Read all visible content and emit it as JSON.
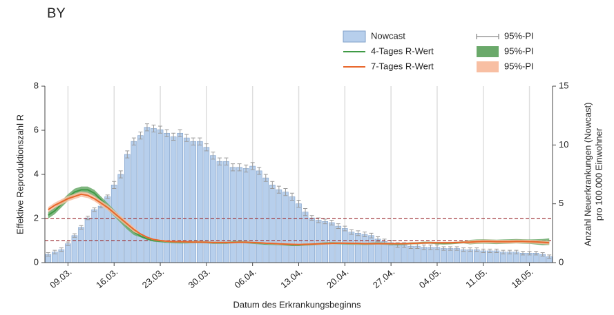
{
  "chart_data": {
    "type": "bar-line",
    "title": "BY",
    "x_label": "Datum des Erkrankungsbeginns",
    "y_label": "Effektive Reproduktionszahl R",
    "y2_label": [
      "Anzahl Neuerkrankungen (Nowcast)",
      "pro 100.000 Einwohner"
    ],
    "categories": [
      null,
      null,
      null,
      "09.03.",
      null,
      null,
      null,
      null,
      null,
      null,
      "16.03.",
      null,
      null,
      null,
      null,
      null,
      null,
      "23.03.",
      null,
      null,
      null,
      null,
      null,
      null,
      "30.03.",
      null,
      null,
      null,
      null,
      null,
      null,
      "06.04.",
      null,
      null,
      null,
      null,
      null,
      null,
      "13.04.",
      null,
      null,
      null,
      null,
      null,
      null,
      "20.04.",
      null,
      null,
      null,
      null,
      null,
      null,
      "27.04.",
      null,
      null,
      null,
      null,
      null,
      null,
      "04.05.",
      null,
      null,
      null,
      null,
      null,
      null,
      "11.05.",
      null,
      null,
      null,
      null,
      null,
      null,
      "18.05.",
      null,
      null,
      null
    ],
    "ylim": [
      0,
      8
    ],
    "yticks": [
      0,
      2,
      4,
      6,
      8
    ],
    "y2lim": [
      0,
      15
    ],
    "y2ticks": [
      0,
      5,
      10,
      15
    ],
    "reference_lines": [
      1,
      2
    ],
    "reference_color": "#a0383c",
    "grid": true,
    "series": [
      {
        "name": "Nowcast",
        "type": "bar",
        "axis": "y2",
        "color": "#b7cfec",
        "edge_color": "#7f9fc8",
        "interval_name": "95%-PI",
        "interval_color": "#9a9a9a",
        "values": [
          0.7,
          0.9,
          1.1,
          1.6,
          2.3,
          3.0,
          3.8,
          4.5,
          4.8,
          5.6,
          6.6,
          7.5,
          9.2,
          10.3,
          10.8,
          11.5,
          11.4,
          11.3,
          11.0,
          10.7,
          11.0,
          10.6,
          10.3,
          10.3,
          9.8,
          9.1,
          8.6,
          8.6,
          8.1,
          8.1,
          8.0,
          8.2,
          7.8,
          7.2,
          6.6,
          6.2,
          6.0,
          5.6,
          5.0,
          4.3,
          3.8,
          3.6,
          3.5,
          3.4,
          3.1,
          2.9,
          2.6,
          2.5,
          2.4,
          2.3,
          2.0,
          1.8,
          1.7,
          1.5,
          1.5,
          1.4,
          1.4,
          1.3,
          1.3,
          1.3,
          1.2,
          1.2,
          1.2,
          1.1,
          1.1,
          1.1,
          1.0,
          1.0,
          1.0,
          0.9,
          0.9,
          0.9,
          0.8,
          0.8,
          0.8,
          0.7,
          0.5
        ],
        "errors": [
          0.15,
          0.15,
          0.15,
          0.15,
          0.15,
          0.15,
          0.15,
          0.15,
          0.15,
          0.15,
          0.3,
          0.3,
          0.3,
          0.3,
          0.3,
          0.3,
          0.3,
          0.3,
          0.3,
          0.3,
          0.3,
          0.3,
          0.3,
          0.3,
          0.3,
          0.3,
          0.3,
          0.3,
          0.3,
          0.3,
          0.3,
          0.3,
          0.3,
          0.3,
          0.3,
          0.3,
          0.3,
          0.3,
          0.3,
          0.3,
          0.2,
          0.2,
          0.2,
          0.2,
          0.2,
          0.2,
          0.2,
          0.2,
          0.2,
          0.2,
          0.2,
          0.2,
          0.2,
          0.2,
          0.2,
          0.2,
          0.2,
          0.2,
          0.2,
          0.2,
          0.15,
          0.15,
          0.15,
          0.15,
          0.15,
          0.15,
          0.15,
          0.15,
          0.15,
          0.15,
          0.15,
          0.15,
          0.15,
          0.15,
          0.15,
          0.15,
          0.15
        ]
      },
      {
        "name": "4-Tages R-Wert",
        "type": "line",
        "color": "#3f9a45",
        "interval_name": "95%-PI",
        "interval_color": "#6aa96a",
        "values": [
          2.15,
          2.35,
          2.65,
          2.95,
          3.2,
          3.3,
          3.3,
          3.15,
          2.85,
          2.55,
          2.25,
          1.95,
          1.65,
          1.4,
          1.2,
          1.08,
          1.0,
          0.97,
          0.95,
          0.93,
          0.92,
          0.92,
          0.93,
          0.93,
          0.92,
          0.9,
          0.9,
          0.9,
          0.92,
          0.93,
          0.92,
          0.9,
          0.88,
          0.86,
          0.85,
          0.84,
          0.82,
          0.8,
          0.8,
          0.82,
          0.83,
          0.85,
          0.87,
          0.88,
          0.88,
          0.87,
          0.86,
          0.86,
          0.85,
          0.86,
          0.87,
          0.86,
          0.85,
          0.84,
          0.85,
          0.87,
          0.88,
          0.9,
          0.9,
          0.88,
          0.87,
          0.88,
          0.9,
          0.92,
          0.93,
          0.95,
          0.96,
          0.95,
          0.94,
          0.95,
          0.96,
          0.97,
          0.96,
          0.95,
          0.94,
          0.93,
          0.95
        ],
        "ci": [
          0.15,
          0.15,
          0.15,
          0.15,
          0.15,
          0.15,
          0.15,
          0.15,
          0.15,
          0.15,
          0.15,
          0.15,
          0.15,
          0.15,
          0.05,
          0.05,
          0.05,
          0.05,
          0.05,
          0.05,
          0.05,
          0.05,
          0.05,
          0.05,
          0.05,
          0.05,
          0.05,
          0.05,
          0.05,
          0.05,
          0.05,
          0.05,
          0.05,
          0.05,
          0.05,
          0.05,
          0.05,
          0.05,
          0.05,
          0.05,
          0.05,
          0.05,
          0.05,
          0.05,
          0.05,
          0.05,
          0.05,
          0.05,
          0.05,
          0.05,
          0.05,
          0.05,
          0.05,
          0.05,
          0.05,
          0.05,
          0.05,
          0.05,
          0.05,
          0.05,
          0.05,
          0.05,
          0.05,
          0.05,
          0.1,
          0.1,
          0.1,
          0.1,
          0.1,
          0.1,
          0.1,
          0.1,
          0.1,
          0.1,
          0.12,
          0.14,
          0.15
        ]
      },
      {
        "name": "7-Tages R-Wert",
        "type": "line",
        "color": "#e8662a",
        "interval_name": "95%-PI",
        "interval_color": "#f8bfa3",
        "values": [
          2.4,
          2.6,
          2.75,
          2.9,
          3.0,
          3.1,
          3.05,
          2.9,
          2.7,
          2.5,
          2.25,
          2.0,
          1.75,
          1.5,
          1.3,
          1.15,
          1.05,
          1.0,
          0.97,
          0.95,
          0.95,
          0.94,
          0.93,
          0.93,
          0.92,
          0.91,
          0.91,
          0.91,
          0.91,
          0.92,
          0.92,
          0.91,
          0.9,
          0.88,
          0.87,
          0.85,
          0.84,
          0.83,
          0.82,
          0.83,
          0.84,
          0.85,
          0.86,
          0.87,
          0.88,
          0.88,
          0.87,
          0.87,
          0.86,
          0.86,
          0.86,
          0.86,
          0.86,
          0.86,
          0.86,
          0.87,
          0.88,
          0.89,
          0.9,
          0.9,
          0.9,
          0.9,
          0.91,
          0.92,
          0.93,
          0.95,
          0.96,
          0.96,
          0.95,
          0.95,
          0.95,
          0.96,
          0.96,
          0.95,
          0.94,
          0.92,
          0.9
        ],
        "ci": [
          0.12,
          0.12,
          0.12,
          0.12,
          0.12,
          0.12,
          0.12,
          0.12,
          0.12,
          0.12,
          0.12,
          0.12,
          0.12,
          0.12,
          0.04,
          0.04,
          0.04,
          0.04,
          0.04,
          0.04,
          0.04,
          0.04,
          0.04,
          0.04,
          0.04,
          0.04,
          0.04,
          0.04,
          0.04,
          0.04,
          0.04,
          0.04,
          0.04,
          0.04,
          0.04,
          0.04,
          0.04,
          0.04,
          0.04,
          0.04,
          0.04,
          0.04,
          0.04,
          0.04,
          0.04,
          0.04,
          0.04,
          0.04,
          0.04,
          0.04,
          0.04,
          0.04,
          0.04,
          0.04,
          0.04,
          0.04,
          0.04,
          0.04,
          0.04,
          0.04,
          0.04,
          0.04,
          0.04,
          0.04,
          0.08,
          0.08,
          0.08,
          0.08,
          0.08,
          0.08,
          0.08,
          0.08,
          0.08,
          0.08,
          0.08,
          0.08,
          0.08
        ]
      }
    ]
  }
}
